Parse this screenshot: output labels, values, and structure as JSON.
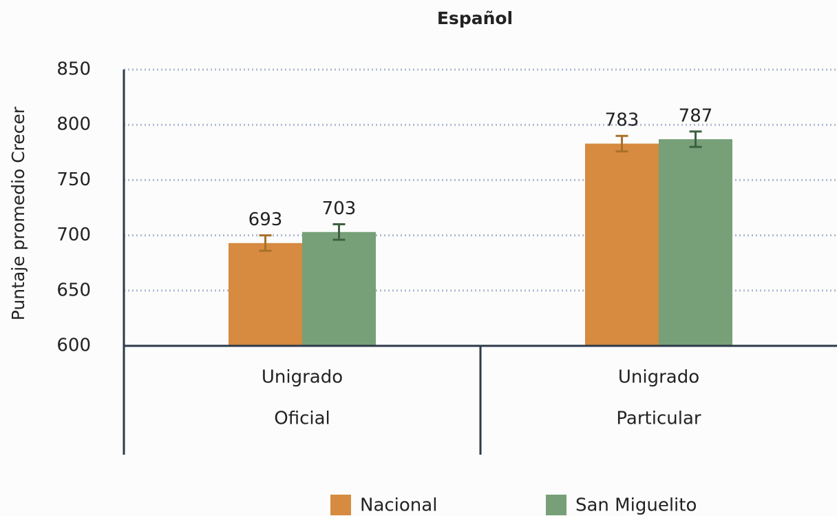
{
  "chart_data": {
    "type": "bar",
    "title": "Español",
    "y_label": "Puntaje promedio Crecer",
    "categories": [
      [
        "Unigrado",
        "Oficial"
      ],
      [
        "Unigrado",
        "Particular"
      ]
    ],
    "series": [
      {
        "name": "Nacional",
        "color": "#d68b40",
        "error_color": "#a8702a",
        "values": [
          693,
          783
        ],
        "errors": [
          7,
          7
        ]
      },
      {
        "name": "San Miguelito",
        "color": "#77a078",
        "error_color": "#3e6040",
        "values": [
          703,
          787
        ],
        "errors": [
          7,
          7
        ]
      }
    ],
    "ylim": [
      600,
      850
    ],
    "yticks": [
      600,
      650,
      700,
      750,
      800,
      850
    ],
    "grid": true,
    "legend": "bottom"
  }
}
